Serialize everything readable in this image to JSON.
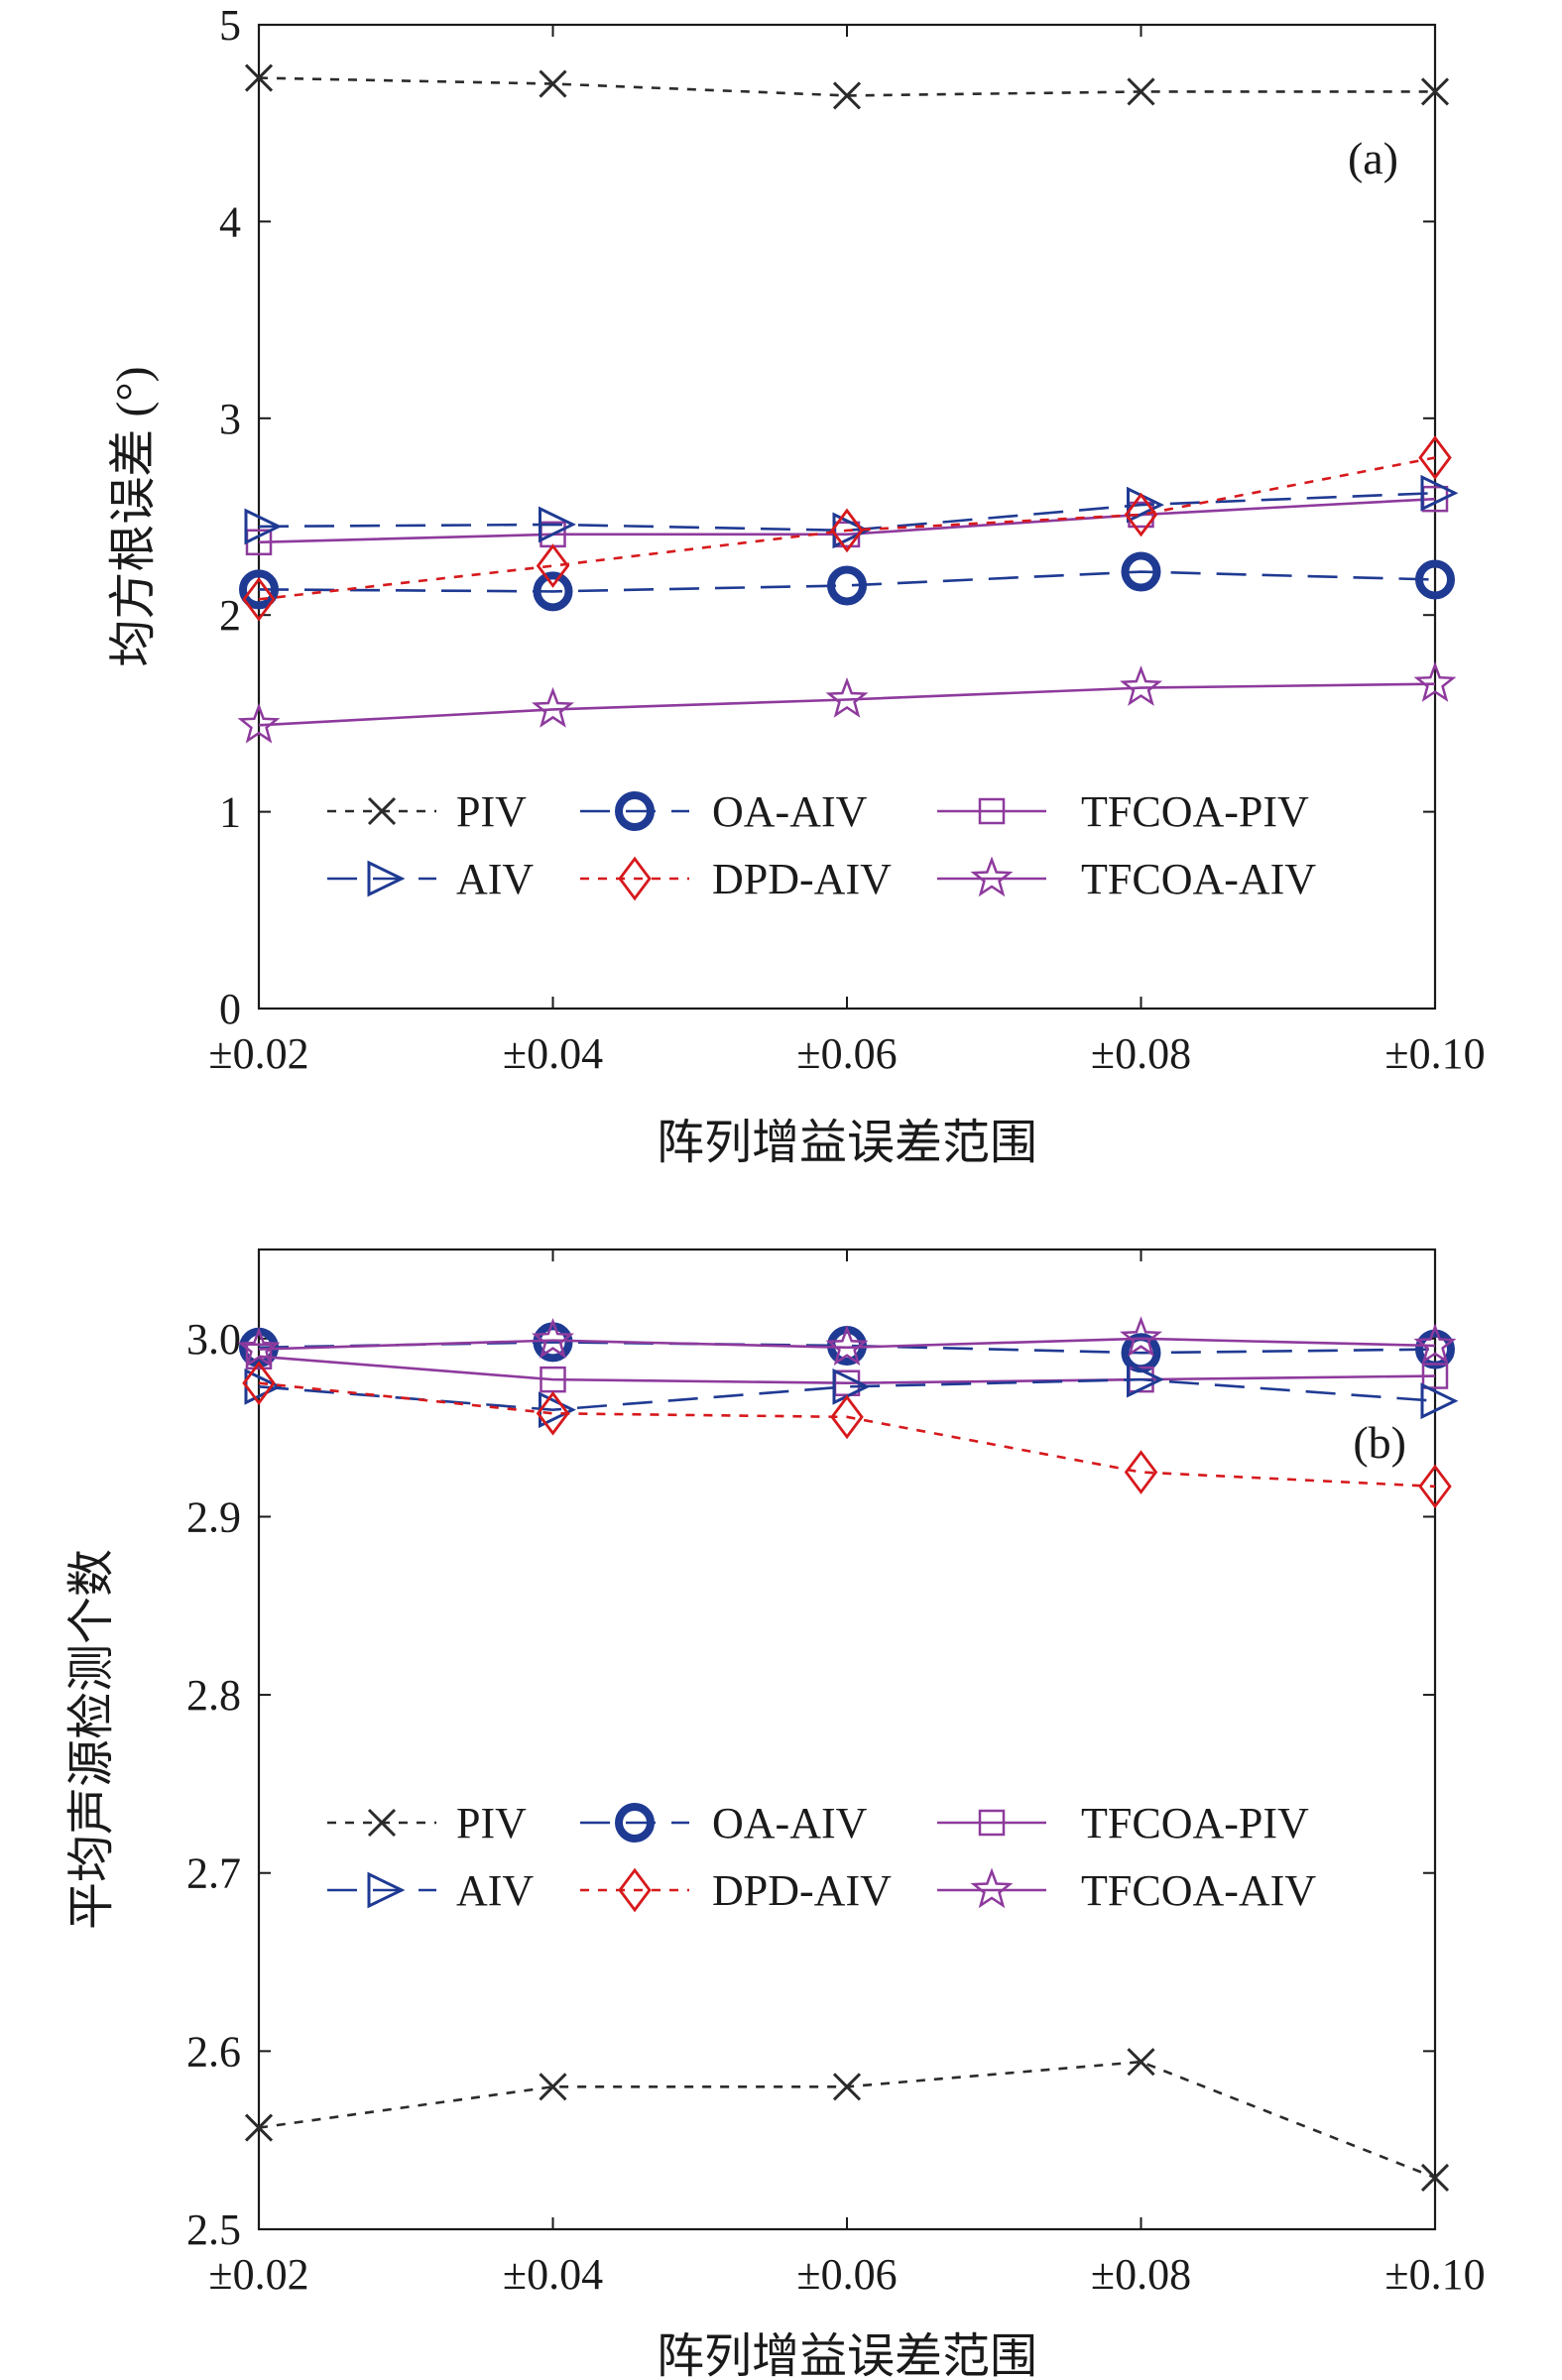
{
  "chart_data": [
    {
      "type": "line",
      "panel_label": "(a)",
      "xlabel": "阵列增益误差范围",
      "ylabel": "均方根误差 (°)",
      "categories": [
        "±0.02",
        "±0.04",
        "±0.06",
        "±0.08",
        "±0.10"
      ],
      "ylim": [
        0,
        5
      ],
      "yticks": [
        "0",
        "1",
        "2",
        "3",
        "4",
        "5"
      ],
      "legend_position": "lower-center",
      "series": [
        {
          "name": "PIV",
          "values": [
            4.73,
            4.7,
            4.64,
            4.66,
            4.66
          ],
          "color": "#2b2b2b",
          "marker": "x",
          "dash": "dash"
        },
        {
          "name": "OA-AIV",
          "values": [
            2.13,
            2.12,
            2.15,
            2.22,
            2.18
          ],
          "color": "#1f3a93",
          "marker": "circle",
          "dash": "longdash"
        },
        {
          "name": "TFCOA-PIV",
          "values": [
            2.37,
            2.41,
            2.41,
            2.51,
            2.59
          ],
          "color": "#8e3a9d",
          "marker": "square",
          "dash": "solid"
        },
        {
          "name": "AIV",
          "values": [
            2.45,
            2.46,
            2.43,
            2.56,
            2.62
          ],
          "color": "#1f3a93",
          "marker": "triangle-right",
          "dash": "longdash"
        },
        {
          "name": "DPD-AIV",
          "values": [
            2.08,
            2.25,
            2.43,
            2.51,
            2.8
          ],
          "color": "#d7191c",
          "marker": "diamond",
          "dash": "dash"
        },
        {
          "name": "TFCOA-AIV",
          "values": [
            1.44,
            1.52,
            1.57,
            1.63,
            1.65
          ],
          "color": "#8e3a9d",
          "marker": "star",
          "dash": "solid"
        }
      ]
    },
    {
      "type": "line",
      "panel_label": "(b)",
      "xlabel": "阵列增益误差范围",
      "ylabel": "平均声源检测个数",
      "categories": [
        "±0.02",
        "±0.04",
        "±0.06",
        "±0.08",
        "±0.10"
      ],
      "ylim": [
        2.5,
        3.05
      ],
      "yticks": [
        "2.5",
        "2.6",
        "2.7",
        "2.8",
        "2.9",
        "3.0"
      ],
      "legend_position": "center",
      "series": [
        {
          "name": "PIV",
          "values": [
            2.557,
            2.58,
            2.58,
            2.594,
            2.529
          ],
          "color": "#2b2b2b",
          "marker": "x",
          "dash": "dash"
        },
        {
          "name": "OA-AIV",
          "values": [
            2.995,
            2.998,
            2.996,
            2.992,
            2.994
          ],
          "color": "#1f3a93",
          "marker": "circle",
          "dash": "longdash"
        },
        {
          "name": "TFCOA-PIV",
          "values": [
            2.99,
            2.977,
            2.975,
            2.977,
            2.979
          ],
          "color": "#8e3a9d",
          "marker": "square",
          "dash": "solid"
        },
        {
          "name": "AIV",
          "values": [
            2.973,
            2.96,
            2.973,
            2.977,
            2.965
          ],
          "color": "#1f3a93",
          "marker": "triangle-right",
          "dash": "longdash"
        },
        {
          "name": "DPD-AIV",
          "values": [
            2.975,
            2.958,
            2.956,
            2.925,
            2.917
          ],
          "color": "#d7191c",
          "marker": "diamond",
          "dash": "dash"
        },
        {
          "name": "TFCOA-AIV",
          "values": [
            2.994,
            2.999,
            2.995,
            3.0,
            2.996
          ],
          "color": "#8e3a9d",
          "marker": "star",
          "dash": "solid"
        }
      ]
    }
  ]
}
